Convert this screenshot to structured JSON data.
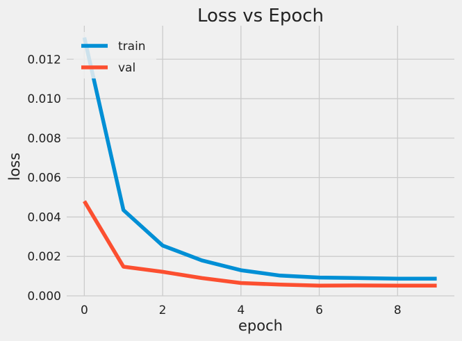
{
  "chart_data": {
    "type": "line",
    "title": "Loss vs Epoch",
    "xlabel": "epoch",
    "ylabel": "loss",
    "x": [
      0,
      1,
      2,
      3,
      4,
      5,
      6,
      7,
      8,
      9
    ],
    "series": [
      {
        "name": "train",
        "color": "#008fd5",
        "values": [
          0.0131,
          0.00435,
          0.00255,
          0.0018,
          0.0013,
          0.00103,
          0.00093,
          0.0009,
          0.00087,
          0.00087
        ]
      },
      {
        "name": "val",
        "color": "#fc4f30",
        "values": [
          0.0048,
          0.00148,
          0.00122,
          0.0009,
          0.00065,
          0.00057,
          0.00052,
          0.00053,
          0.00052,
          0.00052
        ]
      }
    ],
    "xlim": [
      -0.45,
      9.45
    ],
    "ylim": [
      0,
      0.0137
    ],
    "xticks": [
      0,
      2,
      4,
      6,
      8
    ],
    "yticks": [
      0.0,
      0.002,
      0.004,
      0.006,
      0.008,
      0.01,
      0.012
    ],
    "xtick_labels": [
      "0",
      "2",
      "4",
      "6",
      "8"
    ],
    "ytick_labels": [
      "0.000",
      "0.002",
      "0.004",
      "0.006",
      "0.008",
      "0.010",
      "0.012"
    ],
    "grid": true,
    "legend_position": "top-left"
  }
}
